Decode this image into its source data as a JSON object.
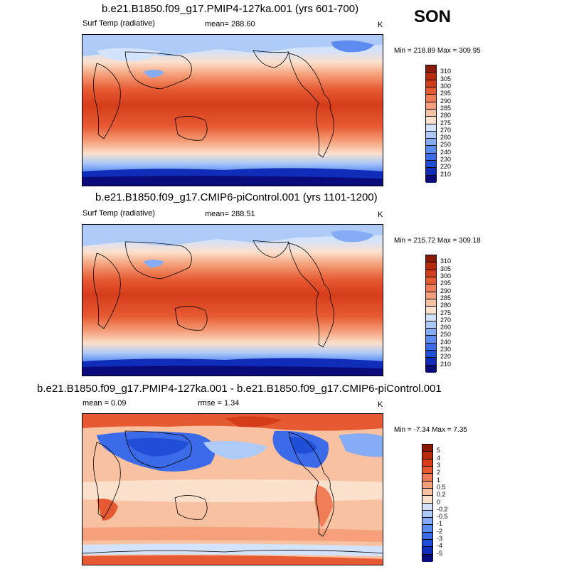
{
  "season": "SON",
  "palettes": {
    "temp": [
      "#0a0a7a",
      "#0f2db8",
      "#1f4fd6",
      "#3b6be8",
      "#5d8cf0",
      "#86acf5",
      "#aecbf8",
      "#d2e3fb",
      "#fbe0cc",
      "#f8c2a2",
      "#f5a07a",
      "#f07d55",
      "#e65a32",
      "#d53d1a",
      "#b82a0a",
      "#8b1a05"
    ],
    "diff": [
      "#0a0a7a",
      "#0f2db8",
      "#1f4fd6",
      "#3b6be8",
      "#5d8cf0",
      "#86acf5",
      "#aecbf8",
      "#d2e3fb",
      "#fbe0cc",
      "#f8c2a2",
      "#f5a07a",
      "#f07d55",
      "#e65a32",
      "#d53d1a",
      "#b82a0a",
      "#8b1a05"
    ]
  },
  "panels": [
    {
      "title": "b.e21.B1850.f09_g17.PMIP4-127ka.001 (yrs 601-700)",
      "left_label": "Surf Temp (radiative)",
      "center_label": "mean= 288.60",
      "units": "K",
      "minmax": "Min = 218.89 Max = 309.95",
      "palette": "temp",
      "ticks": [
        "310",
        "305",
        "300",
        "295",
        "290",
        "285",
        "280",
        "275",
        "270",
        "260",
        "250",
        "240",
        "230",
        "220",
        "210"
      ]
    },
    {
      "title": "b.e21.B1850.f09_g17.CMIP6-piControl.001 (yrs 1101-1200)",
      "left_label": "Surf Temp (radiative)",
      "center_label": "mean= 288.51",
      "units": "K",
      "minmax": "Min = 215.72 Max = 309.18",
      "palette": "temp",
      "ticks": [
        "310",
        "305",
        "300",
        "295",
        "290",
        "285",
        "280",
        "275",
        "270",
        "260",
        "250",
        "240",
        "230",
        "220",
        "210"
      ]
    },
    {
      "title": "b.e21.B1850.f09_g17.PMIP4-127ka.001 - b.e21.B1850.f09_g17.CMIP6-piControl.001",
      "left_label": "mean =   0.09",
      "center_label": "rmse =   1.34",
      "units": "K",
      "minmax": "Min =  -7.34 Max =   7.35",
      "palette": "diff",
      "ticks": [
        "5",
        "4",
        "3",
        "2",
        "1",
        "0.5",
        "0.2",
        "0",
        "-0.2",
        "-0.5",
        "-1",
        "-2",
        "-3",
        "-4",
        "-5"
      ]
    }
  ]
}
